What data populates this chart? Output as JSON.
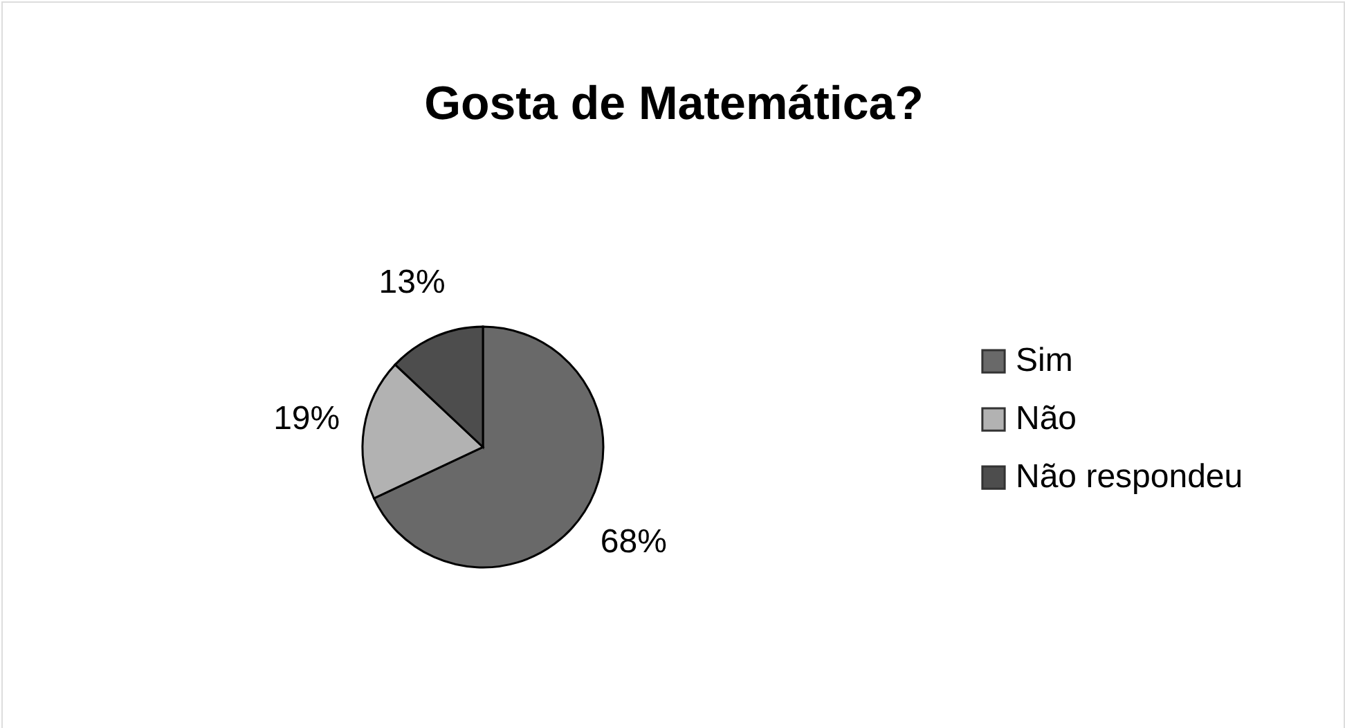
{
  "chart_data": {
    "type": "pie",
    "title": "Gosta de Matemática?",
    "categories": [
      "Sim",
      "Não",
      "Não respondeu"
    ],
    "values": [
      68,
      19,
      13
    ],
    "colors": [
      "#696969",
      "#b2b2b2",
      "#4d4d4d"
    ],
    "value_labels": [
      "68%",
      "19%",
      "13%"
    ],
    "legend": "right"
  }
}
